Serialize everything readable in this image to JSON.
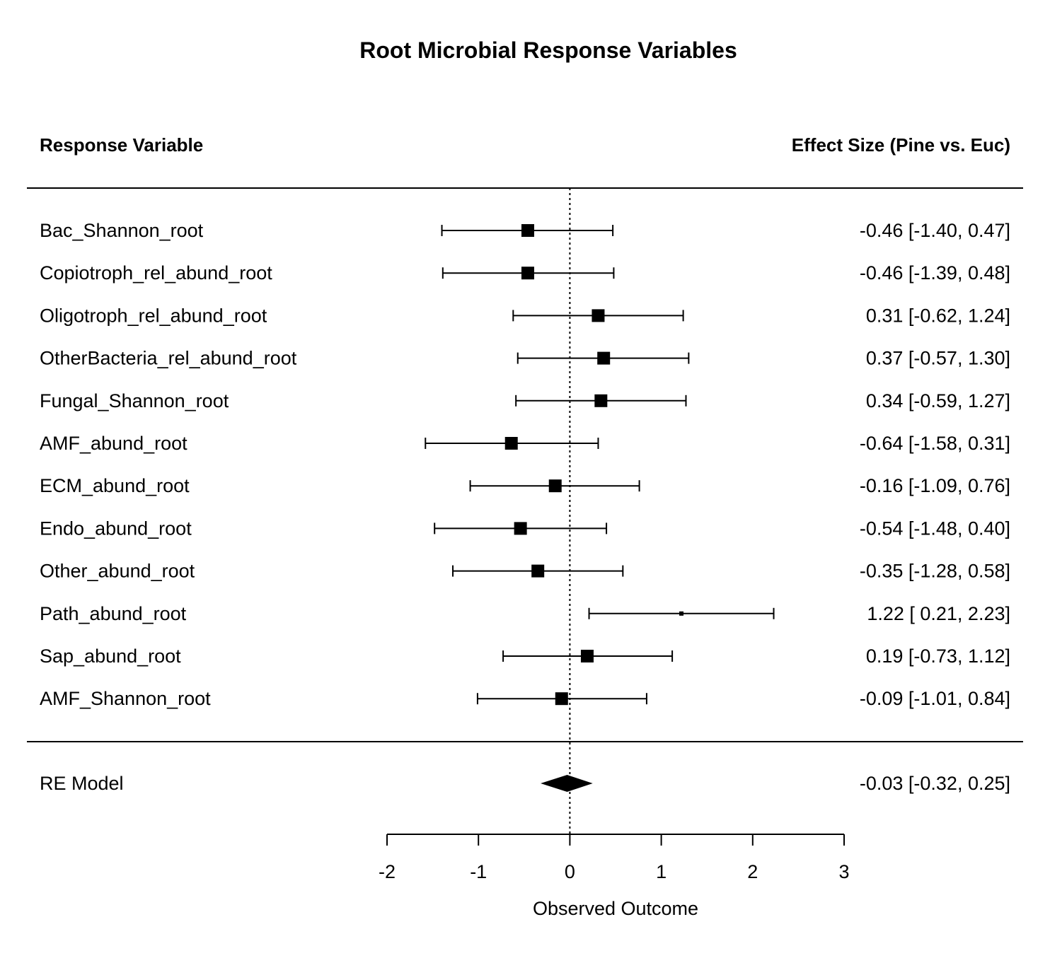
{
  "chart_data": {
    "type": "forest",
    "title": "Root Microbial Response Variables",
    "left_header": "Response Variable",
    "right_header": "Effect Size (Pine vs. Euc)",
    "xlabel": "Observed Outcome",
    "xlim": [
      -2,
      3
    ],
    "xticks": [
      "-2",
      "-1",
      "0",
      "1",
      "2",
      "3"
    ],
    "reference_line": 0,
    "studies": [
      {
        "label": "Bac_Shannon_root",
        "est": -0.46,
        "lo": -1.4,
        "hi": 0.47,
        "text": "-0.46 [-1.40, 0.47]"
      },
      {
        "label": "Copiotroph_rel_abund_root",
        "est": -0.46,
        "lo": -1.39,
        "hi": 0.48,
        "text": "-0.46 [-1.39, 0.48]"
      },
      {
        "label": "Oligotroph_rel_abund_root",
        "est": 0.31,
        "lo": -0.62,
        "hi": 1.24,
        "text": "0.31 [-0.62, 1.24]"
      },
      {
        "label": "OtherBacteria_rel_abund_root",
        "est": 0.37,
        "lo": -0.57,
        "hi": 1.3,
        "text": "0.37 [-0.57, 1.30]"
      },
      {
        "label": "Fungal_Shannon_root",
        "est": 0.34,
        "lo": -0.59,
        "hi": 1.27,
        "text": "0.34 [-0.59, 1.27]"
      },
      {
        "label": "AMF_abund_root",
        "est": -0.64,
        "lo": -1.58,
        "hi": 0.31,
        "text": "-0.64 [-1.58, 0.31]"
      },
      {
        "label": "ECM_abund_root",
        "est": -0.16,
        "lo": -1.09,
        "hi": 0.76,
        "text": "-0.16 [-1.09, 0.76]"
      },
      {
        "label": "Endo_abund_root",
        "est": -0.54,
        "lo": -1.48,
        "hi": 0.4,
        "text": "-0.54 [-1.48, 0.40]"
      },
      {
        "label": "Other_abund_root",
        "est": -0.35,
        "lo": -1.28,
        "hi": 0.58,
        "text": "-0.35 [-1.28, 0.58]"
      },
      {
        "label": "Path_abund_root",
        "est": 1.22,
        "lo": 0.21,
        "hi": 2.23,
        "text": "1.22 [ 0.21, 2.23]",
        "small_marker": true
      },
      {
        "label": "Sap_abund_root",
        "est": 0.19,
        "lo": -0.73,
        "hi": 1.12,
        "text": "0.19 [-0.73, 1.12]"
      },
      {
        "label": "AMF_Shannon_root",
        "est": -0.09,
        "lo": -1.01,
        "hi": 0.84,
        "text": "-0.09 [-1.01, 0.84]"
      }
    ],
    "summary": {
      "label": "RE Model",
      "est": -0.03,
      "lo": -0.32,
      "hi": 0.25,
      "text": "-0.03 [-0.32, 0.25]"
    },
    "colors": {
      "ink": "#000000",
      "background": "#ffffff"
    }
  }
}
